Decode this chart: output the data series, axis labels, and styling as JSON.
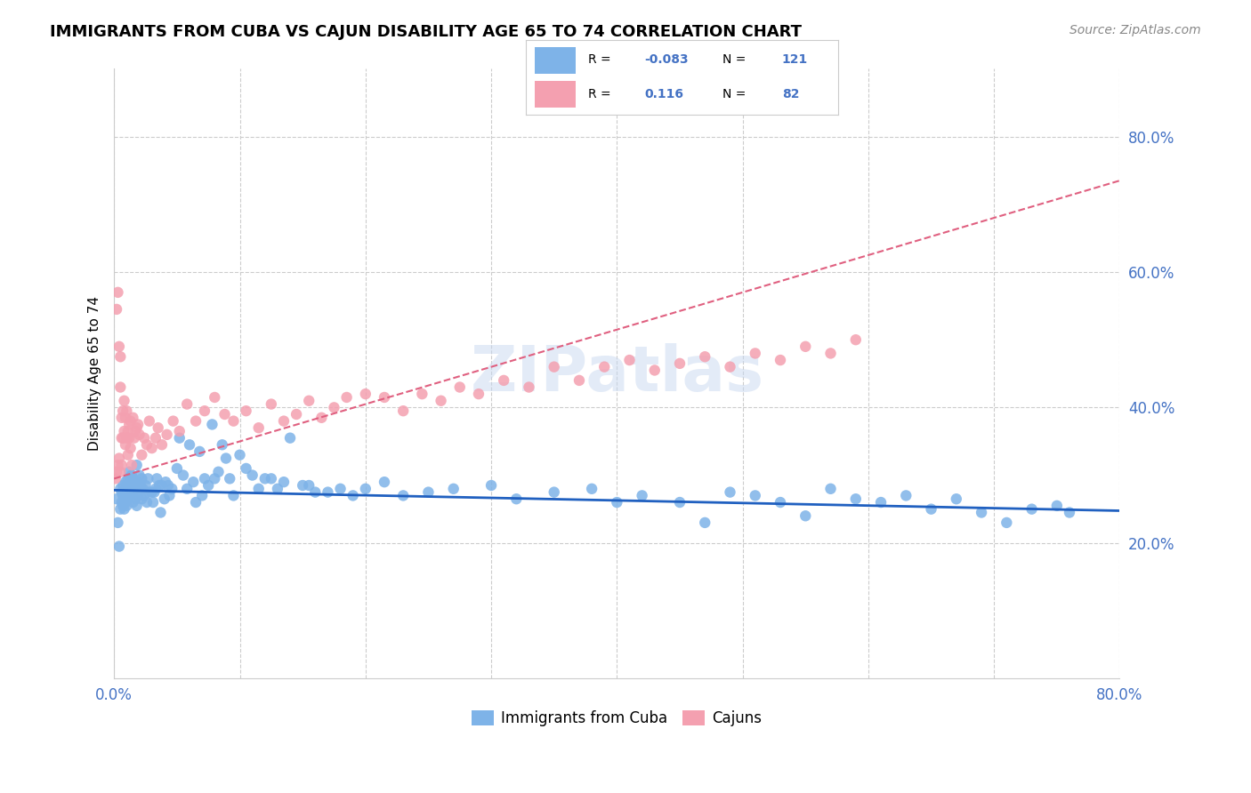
{
  "title": "IMMIGRANTS FROM CUBA VS CAJUN DISABILITY AGE 65 TO 74 CORRELATION CHART",
  "source": "Source: ZipAtlas.com",
  "ylabel": "Disability Age 65 to 74",
  "watermark": "ZIPatlas",
  "xlim": [
    0.0,
    0.8
  ],
  "ylim": [
    0.0,
    0.9
  ],
  "yticks": [
    0.2,
    0.4,
    0.6,
    0.8
  ],
  "ytick_labels": [
    "20.0%",
    "40.0%",
    "60.0%",
    "80.0%"
  ],
  "blue_color": "#7eb3e8",
  "pink_color": "#f4a0b0",
  "blue_line_color": "#2060c0",
  "pink_line_color": "#e06080",
  "blue_intercept": 0.278,
  "blue_slope": -0.038,
  "pink_intercept": 0.295,
  "pink_slope": 0.55,
  "blue_points_x": [
    0.002,
    0.003,
    0.004,
    0.005,
    0.005,
    0.006,
    0.006,
    0.007,
    0.007,
    0.007,
    0.008,
    0.008,
    0.008,
    0.009,
    0.009,
    0.01,
    0.01,
    0.01,
    0.011,
    0.011,
    0.012,
    0.012,
    0.012,
    0.013,
    0.013,
    0.014,
    0.014,
    0.015,
    0.015,
    0.016,
    0.016,
    0.017,
    0.017,
    0.018,
    0.018,
    0.019,
    0.019,
    0.02,
    0.021,
    0.022,
    0.022,
    0.023,
    0.024,
    0.025,
    0.026,
    0.027,
    0.028,
    0.03,
    0.031,
    0.032,
    0.033,
    0.034,
    0.036,
    0.037,
    0.038,
    0.04,
    0.041,
    0.043,
    0.044,
    0.046,
    0.05,
    0.052,
    0.055,
    0.058,
    0.06,
    0.063,
    0.065,
    0.068,
    0.07,
    0.072,
    0.075,
    0.078,
    0.08,
    0.083,
    0.086,
    0.089,
    0.092,
    0.095,
    0.1,
    0.105,
    0.11,
    0.115,
    0.12,
    0.125,
    0.13,
    0.135,
    0.14,
    0.15,
    0.155,
    0.16,
    0.17,
    0.18,
    0.19,
    0.2,
    0.215,
    0.23,
    0.25,
    0.27,
    0.3,
    0.32,
    0.35,
    0.38,
    0.4,
    0.42,
    0.45,
    0.47,
    0.49,
    0.51,
    0.53,
    0.55,
    0.57,
    0.59,
    0.61,
    0.63,
    0.65,
    0.67,
    0.69,
    0.71,
    0.73,
    0.75,
    0.76
  ],
  "blue_points_y": [
    0.265,
    0.23,
    0.195,
    0.28,
    0.25,
    0.26,
    0.275,
    0.255,
    0.27,
    0.285,
    0.265,
    0.25,
    0.275,
    0.26,
    0.29,
    0.27,
    0.255,
    0.285,
    0.295,
    0.265,
    0.28,
    0.27,
    0.305,
    0.275,
    0.29,
    0.285,
    0.3,
    0.26,
    0.295,
    0.275,
    0.285,
    0.265,
    0.28,
    0.255,
    0.315,
    0.27,
    0.29,
    0.3,
    0.285,
    0.295,
    0.265,
    0.28,
    0.27,
    0.285,
    0.26,
    0.295,
    0.275,
    0.275,
    0.26,
    0.275,
    0.28,
    0.295,
    0.285,
    0.245,
    0.285,
    0.265,
    0.29,
    0.285,
    0.27,
    0.28,
    0.31,
    0.355,
    0.3,
    0.28,
    0.345,
    0.29,
    0.26,
    0.335,
    0.27,
    0.295,
    0.285,
    0.375,
    0.295,
    0.305,
    0.345,
    0.325,
    0.295,
    0.27,
    0.33,
    0.31,
    0.3,
    0.28,
    0.295,
    0.295,
    0.28,
    0.29,
    0.355,
    0.285,
    0.285,
    0.275,
    0.275,
    0.28,
    0.27,
    0.28,
    0.29,
    0.27,
    0.275,
    0.28,
    0.285,
    0.265,
    0.275,
    0.28,
    0.26,
    0.27,
    0.26,
    0.23,
    0.275,
    0.27,
    0.26,
    0.24,
    0.28,
    0.265,
    0.26,
    0.27,
    0.25,
    0.265,
    0.245,
    0.23,
    0.25,
    0.255,
    0.245
  ],
  "pink_points_x": [
    0.001,
    0.002,
    0.002,
    0.003,
    0.003,
    0.004,
    0.004,
    0.005,
    0.005,
    0.005,
    0.006,
    0.006,
    0.006,
    0.007,
    0.007,
    0.008,
    0.008,
    0.009,
    0.009,
    0.01,
    0.01,
    0.011,
    0.011,
    0.012,
    0.012,
    0.013,
    0.013,
    0.014,
    0.015,
    0.016,
    0.017,
    0.018,
    0.019,
    0.02,
    0.022,
    0.024,
    0.026,
    0.028,
    0.03,
    0.033,
    0.035,
    0.038,
    0.042,
    0.047,
    0.052,
    0.058,
    0.065,
    0.072,
    0.08,
    0.088,
    0.095,
    0.105,
    0.115,
    0.125,
    0.135,
    0.145,
    0.155,
    0.165,
    0.175,
    0.185,
    0.2,
    0.215,
    0.23,
    0.245,
    0.26,
    0.275,
    0.29,
    0.31,
    0.33,
    0.35,
    0.37,
    0.39,
    0.41,
    0.43,
    0.45,
    0.47,
    0.49,
    0.51,
    0.53,
    0.55,
    0.57,
    0.59
  ],
  "pink_points_y": [
    0.295,
    0.305,
    0.545,
    0.315,
    0.57,
    0.325,
    0.49,
    0.305,
    0.43,
    0.475,
    0.355,
    0.315,
    0.385,
    0.355,
    0.395,
    0.365,
    0.41,
    0.345,
    0.385,
    0.355,
    0.395,
    0.33,
    0.365,
    0.355,
    0.375,
    0.34,
    0.38,
    0.315,
    0.385,
    0.355,
    0.365,
    0.37,
    0.375,
    0.36,
    0.33,
    0.355,
    0.345,
    0.38,
    0.34,
    0.355,
    0.37,
    0.345,
    0.36,
    0.38,
    0.365,
    0.405,
    0.38,
    0.395,
    0.415,
    0.39,
    0.38,
    0.395,
    0.37,
    0.405,
    0.38,
    0.39,
    0.41,
    0.385,
    0.4,
    0.415,
    0.42,
    0.415,
    0.395,
    0.42,
    0.41,
    0.43,
    0.42,
    0.44,
    0.43,
    0.46,
    0.44,
    0.46,
    0.47,
    0.455,
    0.465,
    0.475,
    0.46,
    0.48,
    0.47,
    0.49,
    0.48,
    0.5
  ]
}
